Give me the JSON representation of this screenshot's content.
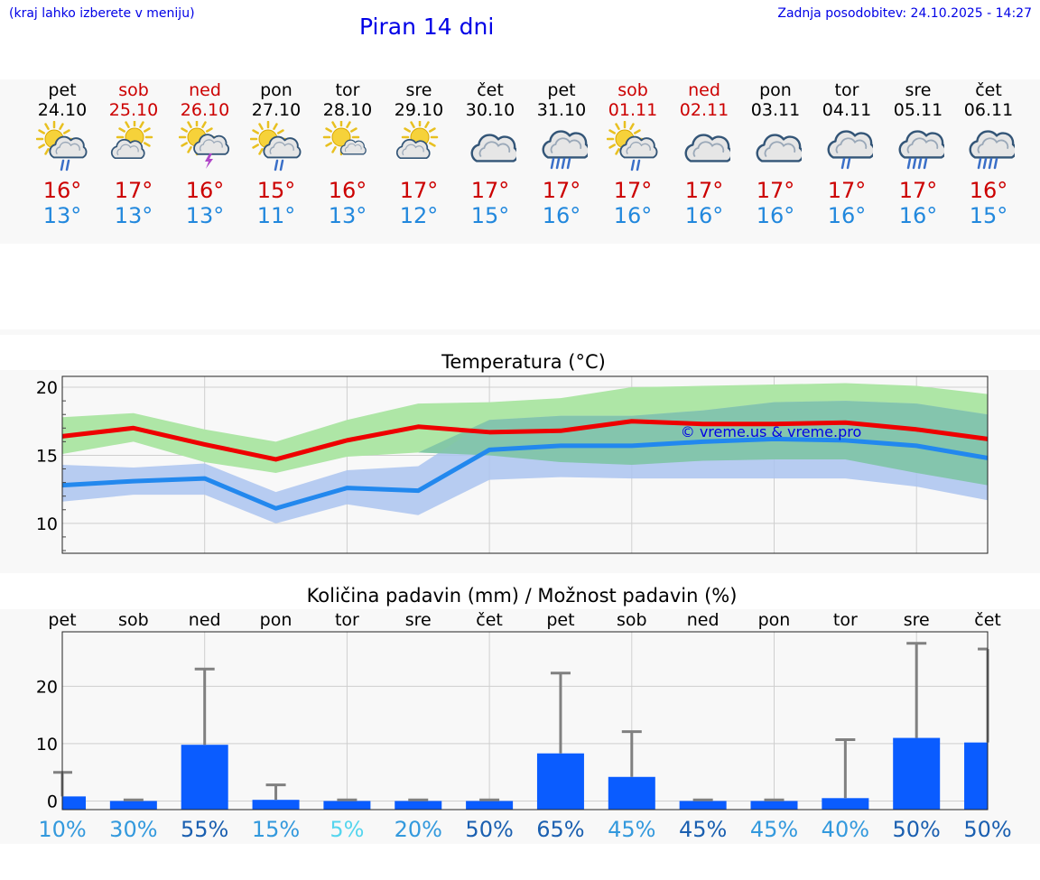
{
  "header": {
    "menu_hint": "(kraj lahko izberete v meniju)",
    "title": "Piran 14 dni",
    "updated": "Zadnja posodobitev: 24.10.2025 - 14:27"
  },
  "days": [
    {
      "name": "pet",
      "date": "24.10",
      "weekend": false,
      "icon": "sun-cloud-rain-icon",
      "tmax": "16°",
      "tmin": "13°"
    },
    {
      "name": "sob",
      "date": "25.10",
      "weekend": true,
      "icon": "sun-cloud-icon",
      "tmax": "17°",
      "tmin": "13°"
    },
    {
      "name": "ned",
      "date": "26.10",
      "weekend": true,
      "icon": "sun-storm-icon",
      "tmax": "16°",
      "tmin": "13°"
    },
    {
      "name": "pon",
      "date": "27.10",
      "weekend": false,
      "icon": "sun-cloud-rain-icon",
      "tmax": "15°",
      "tmin": "11°"
    },
    {
      "name": "tor",
      "date": "28.10",
      "weekend": false,
      "icon": "sun-small-cloud-icon",
      "tmax": "16°",
      "tmin": "13°"
    },
    {
      "name": "sre",
      "date": "29.10",
      "weekend": false,
      "icon": "sun-cloud-icon",
      "tmax": "17°",
      "tmin": "12°"
    },
    {
      "name": "čet",
      "date": "30.10",
      "weekend": false,
      "icon": "cloud-icon",
      "tmax": "17°",
      "tmin": "15°"
    },
    {
      "name": "pet",
      "date": "31.10",
      "weekend": false,
      "icon": "cloud-heavy-rain-icon",
      "tmax": "17°",
      "tmin": "16°"
    },
    {
      "name": "sob",
      "date": "01.11",
      "weekend": true,
      "icon": "sun-cloud-rain-icon",
      "tmax": "17°",
      "tmin": "16°"
    },
    {
      "name": "ned",
      "date": "02.11",
      "weekend": true,
      "icon": "cloud-icon",
      "tmax": "17°",
      "tmin": "16°"
    },
    {
      "name": "pon",
      "date": "03.11",
      "weekend": false,
      "icon": "cloud-icon",
      "tmax": "17°",
      "tmin": "16°"
    },
    {
      "name": "tor",
      "date": "04.11",
      "weekend": false,
      "icon": "cloud-rain-icon",
      "tmax": "17°",
      "tmin": "16°"
    },
    {
      "name": "sre",
      "date": "05.11",
      "weekend": false,
      "icon": "cloud-heavy-rain-icon",
      "tmax": "17°",
      "tmin": "16°"
    },
    {
      "name": "čet",
      "date": "06.11",
      "weekend": false,
      "icon": "cloud-heavy-rain-icon",
      "tmax": "16°",
      "tmin": "15°"
    }
  ],
  "colors": {
    "title_blue": "#0000e6",
    "max_red": "#ee0000",
    "min_blue": "#2288ee",
    "max_band": "#aee6a6",
    "min_band": "#abc4f0",
    "overlap_band": "#80c4a6",
    "bar_blue": "#0a5cff",
    "whisker_gray": "#808080"
  },
  "chart_data": [
    {
      "type": "line",
      "title": "Temperatura (°C)",
      "watermark": "© vreme.us & vreme.pro",
      "ylim": [
        7.8,
        20.8
      ],
      "yticks": [
        10,
        15,
        20
      ],
      "x": [
        0,
        1,
        2,
        3,
        4,
        5,
        6,
        7,
        8,
        9,
        10,
        11,
        12,
        13
      ],
      "series": [
        {
          "name": "max",
          "values": [
            16.4,
            17.0,
            15.8,
            14.7,
            16.1,
            17.1,
            16.7,
            16.8,
            17.5,
            17.3,
            17.3,
            17.4,
            16.9,
            16.2
          ],
          "band_low": [
            15.1,
            16.0,
            14.5,
            13.7,
            14.9,
            15.2,
            15.0,
            14.5,
            14.3,
            14.6,
            14.7,
            14.7,
            13.7,
            12.8
          ],
          "band_high": [
            17.8,
            18.1,
            16.9,
            16.0,
            17.6,
            18.8,
            18.9,
            19.2,
            20.0,
            20.1,
            20.2,
            20.3,
            20.1,
            19.5
          ]
        },
        {
          "name": "min",
          "values": [
            12.8,
            13.1,
            13.3,
            11.1,
            12.6,
            12.4,
            15.4,
            15.7,
            15.7,
            16.0,
            16.2,
            16.1,
            15.7,
            14.8
          ],
          "band_low": [
            11.6,
            12.1,
            12.1,
            10.0,
            11.4,
            10.6,
            13.2,
            13.4,
            13.3,
            13.3,
            13.3,
            13.3,
            12.7,
            11.7
          ],
          "band_high": [
            14.3,
            14.1,
            14.4,
            12.3,
            13.9,
            14.2,
            17.6,
            17.9,
            17.9,
            18.3,
            18.9,
            19.0,
            18.8,
            18.0
          ]
        }
      ]
    },
    {
      "type": "bar",
      "title": "Količina padavin (mm) / Možnost padavin (%)",
      "categories": [
        "pet",
        "sob",
        "ned",
        "pon",
        "tor",
        "sre",
        "čet",
        "pet",
        "sob",
        "ned",
        "pon",
        "tor",
        "sre",
        "čet"
      ],
      "ylim": [
        -1.5,
        29.5
      ],
      "yticks": [
        0,
        10,
        20
      ],
      "values": [
        0.8,
        0,
        9.8,
        0.2,
        0,
        0,
        0,
        8.3,
        4.2,
        0,
        0,
        0.5,
        11.0,
        10.2
      ],
      "whisker_high": [
        5.0,
        0.2,
        23.0,
        2.8,
        0.2,
        0.2,
        0.2,
        22.3,
        12.1,
        0.2,
        0.2,
        10.7,
        27.5,
        26.5
      ],
      "probability": [
        "10%",
        "30%",
        "55%",
        "15%",
        "5%",
        "20%",
        "50%",
        "65%",
        "45%",
        "45%",
        "45%",
        "40%",
        "50%",
        "50%"
      ],
      "probability_colors": [
        "#3399dd",
        "#3399dd",
        "#1a5fb0",
        "#3399dd",
        "#55d5ee",
        "#3399dd",
        "#1a5fb0",
        "#1a5fb0",
        "#3399dd",
        "#1a5fb0",
        "#3399dd",
        "#3399dd",
        "#1a5fb0",
        "#1a5fb0"
      ]
    }
  ]
}
